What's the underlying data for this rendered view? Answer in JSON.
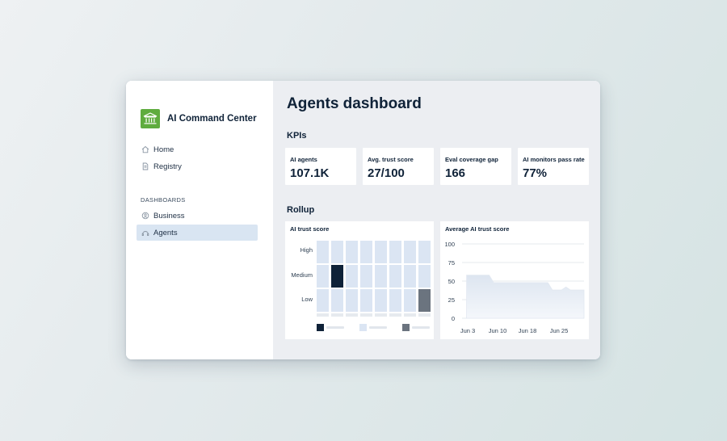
{
  "app": {
    "name": "AI Command Center",
    "logo_color": "#5fac3e"
  },
  "sidebar": {
    "items": [
      {
        "label": "Home",
        "icon": "home-icon"
      },
      {
        "label": "Registry",
        "icon": "document-icon"
      }
    ],
    "section_label": "DASHBOARDS",
    "dashboards": [
      {
        "label": "Business",
        "icon": "business-icon"
      },
      {
        "label": "Agents",
        "icon": "agents-icon",
        "active": true
      }
    ]
  },
  "main": {
    "title": "Agents dashboard",
    "kpis_heading": "KPIs",
    "kpis": [
      {
        "label": "AI agents",
        "value": "107.1K"
      },
      {
        "label": "Avg. trust score",
        "value": "27/100"
      },
      {
        "label": "Eval coverage gap",
        "value": "166"
      },
      {
        "label": "AI monitors pass rate",
        "value": "77%"
      }
    ],
    "rollup_heading": "Rollup",
    "heatmap": {
      "title": "AI trust score",
      "rows": [
        "High",
        "Medium",
        "Low"
      ],
      "highlight_colors": {
        "dark": "#0f2238",
        "gray": "#6b747f",
        "light": "#dbe5f3"
      }
    },
    "area_chart": {
      "title": "Average AI trust score"
    }
  },
  "chart_data": [
    {
      "type": "heatmap",
      "title": "AI trust score",
      "rows": [
        "High",
        "Medium",
        "Low"
      ],
      "columns": 8,
      "cells": [
        [
          "light",
          "light",
          "light",
          "light",
          "light",
          "light",
          "light",
          "light"
        ],
        [
          "light",
          "dark",
          "light",
          "light",
          "light",
          "light",
          "light",
          "light"
        ],
        [
          "light",
          "light",
          "light",
          "light",
          "light",
          "light",
          "light",
          "gray"
        ]
      ]
    },
    {
      "type": "area",
      "title": "Average AI trust score",
      "x_ticks": [
        "Jun 3",
        "Jun 10",
        "Jun 18",
        "Jun 25"
      ],
      "y_ticks": [
        0,
        25,
        50,
        75,
        100
      ],
      "ylim": [
        0,
        100
      ],
      "grid": true,
      "series": [
        {
          "x": [
            0,
            1,
            2,
            3,
            4,
            5,
            6,
            7,
            8,
            9,
            10,
            11,
            12,
            13,
            14,
            15,
            16,
            17,
            18,
            19,
            20,
            21,
            22,
            23,
            24,
            25,
            26,
            27
          ],
          "values": [
            null,
            58,
            58,
            58,
            58,
            58,
            58,
            48,
            48,
            48,
            48,
            48,
            48,
            48,
            48,
            48,
            48,
            48,
            48,
            48,
            38,
            38,
            38,
            42,
            38,
            38,
            38,
            38
          ]
        }
      ]
    }
  ]
}
